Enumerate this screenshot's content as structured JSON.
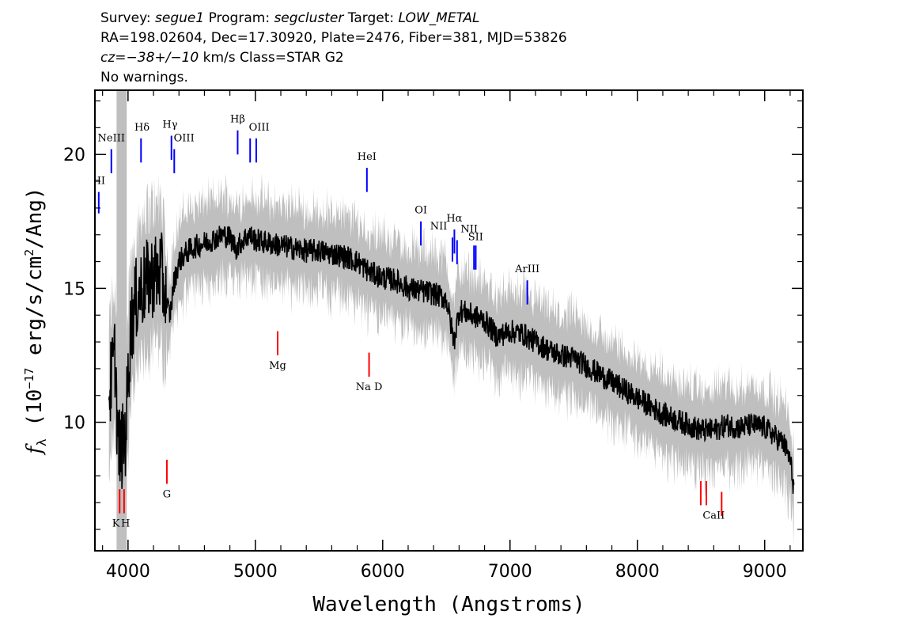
{
  "header": {
    "line1": [
      {
        "t": "Survey: ",
        "i": false
      },
      {
        "t": "segue1",
        "i": true
      },
      {
        "t": " Program: ",
        "i": false
      },
      {
        "t": "segcluster",
        "i": true
      },
      {
        "t": " Target: ",
        "i": false
      },
      {
        "t": "LOW_METAL",
        "i": true
      }
    ],
    "line2": "RA=198.02604, Dec=17.30920, Plate=2476, Fiber=381, MJD=53826",
    "line3": [
      {
        "t": "cz=",
        "i": true
      },
      {
        "t": "−38+/−10",
        "i": true
      },
      {
        "t": " km/s Class=STAR G2",
        "i": false
      }
    ],
    "line4": "No warnings."
  },
  "colors": {
    "emission": "#0000ff",
    "absorption": "#ff0000",
    "error_band": "#bfbfbf",
    "flux": "#000000"
  },
  "chart_data": {
    "type": "line",
    "title": "",
    "xlabel": "Wavelength (Angstroms)",
    "ylabel_parts": [
      "f",
      "λ",
      " (10",
      "−17",
      " erg/s/cm",
      "2",
      "/Ang)"
    ],
    "xlim": [
      3740,
      9300
    ],
    "ylim": [
      5.2,
      22.4
    ],
    "xticks": [
      4000,
      5000,
      6000,
      7000,
      8000,
      9000
    ],
    "yticks": [
      10,
      15,
      20
    ],
    "grid": false,
    "series": [
      {
        "kind": "flux",
        "x": [
          3850,
          3880,
          3900,
          3920,
          3950,
          3980,
          4020,
          4060,
          4100,
          4140,
          4200,
          4260,
          4300,
          4330,
          4360,
          4400,
          4450,
          4500,
          4550,
          4600,
          4650,
          4700,
          4750,
          4800,
          4850,
          4900,
          4950,
          5000,
          5100,
          5200,
          5300,
          5400,
          5500,
          5600,
          5700,
          5800,
          5900,
          6000,
          6100,
          6200,
          6300,
          6400,
          6500,
          6560,
          6600,
          6700,
          6800,
          6900,
          7000,
          7100,
          7200,
          7300,
          7400,
          7500,
          7600,
          7700,
          7800,
          7900,
          8000,
          8100,
          8200,
          8300,
          8400,
          8500,
          8600,
          8700,
          8800,
          8900,
          9000,
          9100,
          9150,
          9200,
          9230
        ],
        "y": [
          11.0,
          12.0,
          12.5,
          9.2,
          9.0,
          9.5,
          13.5,
          14.5,
          15.0,
          15.2,
          15.5,
          15.6,
          14.5,
          14.0,
          15.2,
          16.0,
          16.3,
          16.5,
          16.6,
          16.7,
          16.8,
          16.9,
          17.0,
          16.9,
          16.5,
          16.8,
          17.0,
          16.8,
          16.7,
          16.6,
          16.5,
          16.4,
          16.4,
          16.3,
          16.2,
          16.0,
          15.6,
          15.4,
          15.3,
          15.0,
          14.9,
          14.8,
          14.6,
          13.0,
          14.2,
          14.0,
          13.8,
          13.2,
          13.4,
          13.3,
          13.0,
          12.7,
          12.5,
          12.4,
          12.1,
          11.8,
          11.5,
          11.2,
          10.9,
          10.6,
          10.3,
          10.1,
          9.9,
          9.7,
          9.7,
          9.9,
          9.8,
          9.9,
          9.8,
          9.4,
          9.2,
          8.6,
          7.5
        ]
      }
    ],
    "spectral_lines": {
      "emission": [
        {
          "label": "HI",
          "x": 3770,
          "y0": 17.8,
          "y1": 18.6,
          "lx": 3770,
          "ly": 18.9
        },
        {
          "label": "NeIII",
          "x": 3869,
          "y0": 19.3,
          "y1": 20.2,
          "lx": 3869,
          "ly": 20.5
        },
        {
          "label": "Hδ",
          "x": 4102,
          "y0": 19.7,
          "y1": 20.6,
          "lx": 4110,
          "ly": 20.9
        },
        {
          "label": "Hγ",
          "x": 4341,
          "y0": 19.8,
          "y1": 20.7,
          "lx": 4330,
          "ly": 21.0
        },
        {
          "label": "OIII",
          "x": 4363,
          "y0": 19.3,
          "y1": 20.2,
          "lx": 4440,
          "ly": 20.5
        },
        {
          "label": "Hβ",
          "x": 4861,
          "y0": 20.0,
          "y1": 20.9,
          "lx": 4861,
          "ly": 21.2
        },
        {
          "label": "OIII",
          "x": 4959,
          "y0": 19.7,
          "y1": 20.6,
          "lx": 5030,
          "ly": 20.9
        },
        {
          "label": "OIII",
          "x": 5007,
          "y0": 19.7,
          "y1": 20.6,
          "lx": null,
          "ly": null
        },
        {
          "label": "HeI",
          "x": 5876,
          "y0": 18.6,
          "y1": 19.5,
          "lx": 5876,
          "ly": 19.8
        },
        {
          "label": "OI",
          "x": 6300,
          "y0": 16.6,
          "y1": 17.5,
          "lx": 6300,
          "ly": 17.8
        },
        {
          "label": "NII",
          "x": 6548,
          "y0": 16.0,
          "y1": 16.9,
          "lx": 6440,
          "ly": 17.2
        },
        {
          "label": "Hα",
          "x": 6563,
          "y0": 16.3,
          "y1": 17.2,
          "lx": 6563,
          "ly": 17.5
        },
        {
          "label": "NII",
          "x": 6584,
          "y0": 15.9,
          "y1": 16.8,
          "lx": 6680,
          "ly": 17.1
        },
        {
          "label": "SII",
          "x": 6717,
          "y0": 15.7,
          "y1": 16.6,
          "lx": 6730,
          "ly": 16.8
        },
        {
          "label": "SII",
          "x": 6731,
          "y0": 15.7,
          "y1": 16.6,
          "lx": null,
          "ly": null
        },
        {
          "label": "ArIII",
          "x": 7136,
          "y0": 14.4,
          "y1": 15.3,
          "lx": 7136,
          "ly": 15.6
        }
      ],
      "absorption": [
        {
          "label": "K",
          "x": 3934,
          "y0": 6.6,
          "y1": 7.5,
          "lx": 3905,
          "ly": 6.1
        },
        {
          "label": "H",
          "x": 3969,
          "y0": 6.6,
          "y1": 7.5,
          "lx": 3980,
          "ly": 6.1
        },
        {
          "label": "G",
          "x": 4305,
          "y0": 7.7,
          "y1": 8.6,
          "lx": 4305,
          "ly": 7.2
        },
        {
          "label": "Mg",
          "x": 5175,
          "y0": 12.5,
          "y1": 13.4,
          "lx": 5175,
          "ly": 12.0
        },
        {
          "label": "Na D",
          "x": 5893,
          "y0": 11.7,
          "y1": 12.6,
          "lx": 5893,
          "ly": 11.2
        },
        {
          "label": "CaII",
          "x": 8498,
          "y0": 6.9,
          "y1": 7.8,
          "lx": 8600,
          "ly": 6.4
        },
        {
          "label": "CaII",
          "x": 8542,
          "y0": 6.9,
          "y1": 7.8,
          "lx": null,
          "ly": null
        },
        {
          "label": "CaII",
          "x": 8662,
          "y0": 6.5,
          "y1": 7.4,
          "lx": null,
          "ly": null
        }
      ]
    }
  }
}
